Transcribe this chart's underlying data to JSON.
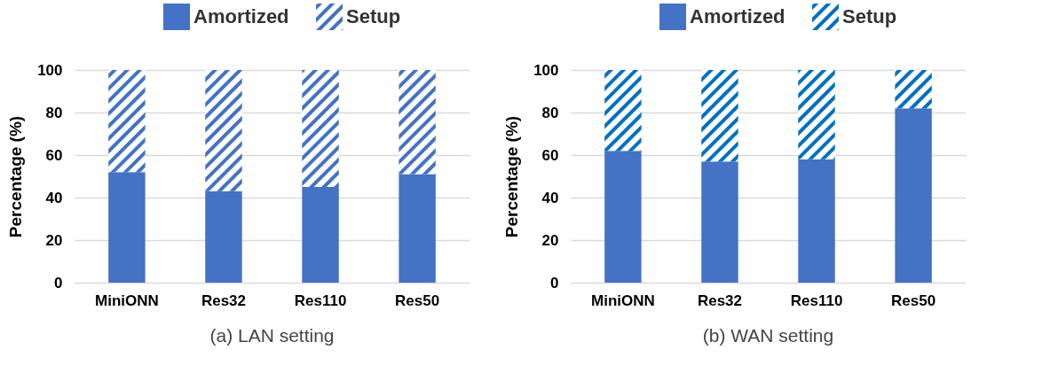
{
  "chart_data": [
    {
      "type": "bar",
      "title": "(a) LAN setting",
      "ylabel": "Percentage (%)",
      "categories": [
        "MiniONN",
        "Res32",
        "Res110",
        "Res50"
      ],
      "stacked": true,
      "legend": "top",
      "grid": "y",
      "ylim": [
        0,
        100
      ],
      "yticks": [
        0,
        20,
        40,
        60,
        80,
        100
      ],
      "series": [
        {
          "name": "Amortized",
          "color": "#4472c4",
          "values": [
            52,
            43,
            45,
            51
          ]
        },
        {
          "name": "Setup",
          "color": "#4472c4",
          "values": [
            48,
            57,
            55,
            49
          ]
        }
      ]
    },
    {
      "type": "bar",
      "title": "(b) WAN setting",
      "ylabel": "Percentage (%)",
      "categories": [
        "MiniONN",
        "Res32",
        "Res110",
        "Res50"
      ],
      "stacked": true,
      "legend": "top",
      "grid": "y",
      "ylim": [
        0,
        100
      ],
      "yticks": [
        0,
        20,
        40,
        60,
        80,
        100
      ],
      "series": [
        {
          "name": "Amortized",
          "color": "#4472c4",
          "values": [
            62,
            57,
            58,
            82
          ]
        },
        {
          "name": "Setup",
          "color": "#0070c0",
          "values": [
            38,
            43,
            42,
            18
          ]
        }
      ]
    }
  ]
}
